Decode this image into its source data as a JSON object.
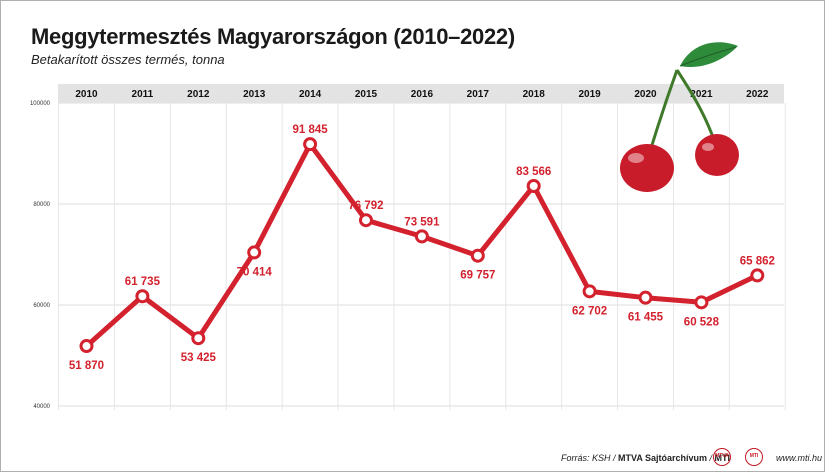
{
  "title": "Meggytermesztés Magyarországon (2010–2022)",
  "subtitle": "Betakarított összes termés, tonna",
  "colors": {
    "line": "#d3212d",
    "header_band": "#e3e3e3",
    "grid": "#dddddd",
    "cherry": "#c91c2a",
    "leaf": "#2e8b3a"
  },
  "chart_data": {
    "type": "line",
    "x": [
      "2010",
      "2011",
      "2012",
      "2013",
      "2014",
      "2015",
      "2016",
      "2017",
      "2018",
      "2019",
      "2020",
      "2021",
      "2022"
    ],
    "series": [
      {
        "values": [
          51870,
          61735,
          53425,
          70414,
          91845,
          76792,
          73591,
          69757,
          83566,
          62702,
          61455,
          60528,
          65862
        ]
      }
    ],
    "value_labels": [
      "51 870",
      "61 735",
      "53 425",
      "70 414",
      "91 845",
      "76 792",
      "73 591",
      "69 757",
      "83 566",
      "62 702",
      "61 455",
      "60 528",
      "65 862"
    ],
    "label_position": [
      "below",
      "above",
      "below",
      "below",
      "above",
      "above",
      "above",
      "below",
      "above",
      "below",
      "below",
      "below",
      "above"
    ],
    "y_ticks": [
      "100000",
      "80000",
      "60000",
      "40000"
    ],
    "ylim": [
      40000,
      100000
    ],
    "grid": true
  },
  "footer": {
    "source_prefix": "Forrás: KSH / ",
    "source_bold": "MTVA Sajtóarchívum",
    "source_sep": " / ",
    "source_end": "MTI",
    "logo1": "MTVA",
    "logo2": "MTI",
    "website": "www.mti.hu"
  }
}
